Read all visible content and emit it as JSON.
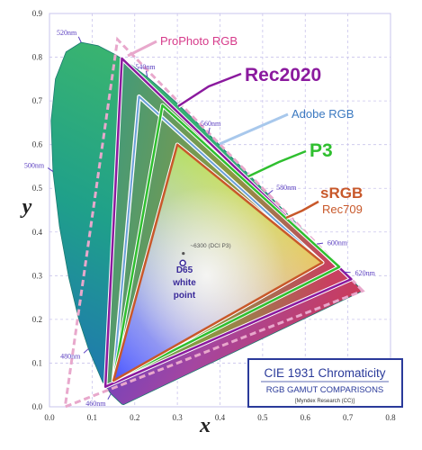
{
  "chart_data": {
    "type": "scatter",
    "xlabel": "x",
    "ylabel": "y",
    "xlim": [
      0,
      0.8
    ],
    "ylim": [
      0,
      0.9
    ],
    "x_ticks": [
      "0.0",
      "0.1",
      "0.2",
      "0.3",
      "0.4",
      "0.5",
      "0.6",
      "0.7",
      "0.8"
    ],
    "y_ticks": [
      "0.0",
      "0.1",
      "0.2",
      "0.3",
      "0.4",
      "0.5",
      "0.6",
      "0.7",
      "0.8",
      "0.9"
    ],
    "grid": true,
    "spectral_locus": [
      [
        0.1741,
        0.005
      ],
      [
        0.1703,
        0.0058
      ],
      [
        0.1666,
        0.0089
      ],
      [
        0.1611,
        0.0138
      ],
      [
        0.144,
        0.0297
      ],
      [
        0.1241,
        0.0578
      ],
      [
        0.0913,
        0.1327
      ],
      [
        0.0687,
        0.2007
      ],
      [
        0.0454,
        0.295
      ],
      [
        0.0235,
        0.4127
      ],
      [
        0.0082,
        0.5384
      ],
      [
        0.0039,
        0.6548
      ],
      [
        0.0139,
        0.7502
      ],
      [
        0.0389,
        0.812
      ],
      [
        0.0743,
        0.8338
      ],
      [
        0.1142,
        0.8262
      ],
      [
        0.1547,
        0.8059
      ],
      [
        0.1929,
        0.7816
      ],
      [
        0.2296,
        0.7543
      ],
      [
        0.2658,
        0.7243
      ],
      [
        0.3016,
        0.6923
      ],
      [
        0.3373,
        0.6589
      ],
      [
        0.3731,
        0.6245
      ],
      [
        0.4087,
        0.5896
      ],
      [
        0.4441,
        0.5547
      ],
      [
        0.4788,
        0.5202
      ],
      [
        0.5125,
        0.4866
      ],
      [
        0.5448,
        0.4544
      ],
      [
        0.5752,
        0.4242
      ],
      [
        0.6029,
        0.3965
      ],
      [
        0.627,
        0.3725
      ],
      [
        0.6482,
        0.3514
      ],
      [
        0.6658,
        0.334
      ],
      [
        0.6801,
        0.3197
      ],
      [
        0.6915,
        0.3083
      ],
      [
        0.7006,
        0.2993
      ],
      [
        0.7079,
        0.292
      ],
      [
        0.7347,
        0.2653
      ]
    ],
    "wavelength_labels": [
      {
        "label": "460nm",
        "x": 0.144,
        "y": 0.0297
      },
      {
        "label": "480nm",
        "x": 0.0913,
        "y": 0.1327
      },
      {
        "label": "500nm",
        "x": 0.0082,
        "y": 0.5384
      },
      {
        "label": "520nm",
        "x": 0.0743,
        "y": 0.8338
      },
      {
        "label": "540nm",
        "x": 0.2296,
        "y": 0.7543
      },
      {
        "label": "560nm",
        "x": 0.3731,
        "y": 0.6245
      },
      {
        "label": "580nm",
        "x": 0.5125,
        "y": 0.4866
      },
      {
        "label": "600nm",
        "x": 0.627,
        "y": 0.3725
      },
      {
        "label": "620nm",
        "x": 0.6915,
        "y": 0.3083
      }
    ],
    "gamuts": [
      {
        "name": "ProPhoto RGB",
        "color": "#d63a8a",
        "primaries": [
          [
            0.7347,
            0.2653
          ],
          [
            0.1596,
            0.8404
          ],
          [
            0.0366,
            0.0001
          ]
        ]
      },
      {
        "name": "Rec2020",
        "color": "#8b1a9e",
        "primaries": [
          [
            0.708,
            0.292
          ],
          [
            0.17,
            0.797
          ],
          [
            0.131,
            0.046
          ]
        ]
      },
      {
        "name": "Adobe RGB",
        "color": "#6aa0d8",
        "primaries": [
          [
            0.64,
            0.33
          ],
          [
            0.21,
            0.71
          ],
          [
            0.15,
            0.06
          ]
        ]
      },
      {
        "name": "P3",
        "color": "#2fbf2f",
        "primaries": [
          [
            0.68,
            0.32
          ],
          [
            0.265,
            0.69
          ],
          [
            0.15,
            0.06
          ]
        ]
      },
      {
        "name": "sRGB",
        "color": "#c8582a",
        "primaries": [
          [
            0.64,
            0.33
          ],
          [
            0.3,
            0.6
          ],
          [
            0.15,
            0.06
          ]
        ]
      }
    ],
    "annotations": [
      {
        "label": "~6300 (DCI P3)",
        "x": 0.314,
        "y": 0.351
      },
      {
        "label": "D65 white point",
        "x": 0.3127,
        "y": 0.329
      }
    ]
  },
  "callouts": {
    "prophoto": "ProPhoto RGB",
    "rec2020": "Rec2020",
    "adobe": "Adobe RGB",
    "p3": "P3",
    "srgb": "sRGB",
    "rec709": "Rec709",
    "dci": "~6300 (DCI P3)",
    "d65_1": "D65",
    "d65_2": "white",
    "d65_3": "point"
  },
  "legend_box": {
    "title": "CIE 1931 Chromaticity",
    "subtitle": "RGB GAMUT COMPARISONS",
    "credit": "[Myndex Research (CC)]"
  },
  "colors": {
    "prophoto": "#d63a8a",
    "rec2020": "#8b1a9e",
    "adobe": "#6aa0d8",
    "p3": "#2fbf2f",
    "srgb": "#c8582a",
    "rec709": "#c8582a",
    "legend": "#2a3a9a"
  }
}
